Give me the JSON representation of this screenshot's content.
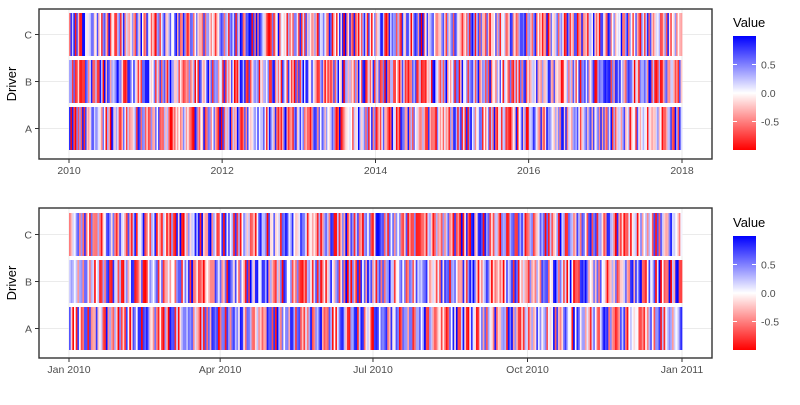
{
  "chart_data": [
    {
      "type": "heatmap",
      "title": "",
      "ylabel": "Driver",
      "xlabel": "",
      "categories": [
        "A",
        "B",
        "C"
      ],
      "x_range": [
        "2010-01-01",
        "2018-01-01"
      ],
      "x_ticks": [
        {
          "value": "2010-01-01",
          "label": "2010"
        },
        {
          "value": "2012-01-01",
          "label": "2012"
        },
        {
          "value": "2014-01-01",
          "label": "2014"
        },
        {
          "value": "2016-01-01",
          "label": "2016"
        },
        {
          "value": "2018-01-01",
          "label": "2018"
        }
      ],
      "stripe_count": 420,
      "value_range": [
        -1,
        1
      ],
      "seed": 7,
      "legend": {
        "title": "Value",
        "ticks": [
          0.5,
          0.0,
          -0.5
        ],
        "tick_labels": [
          "0.5",
          "0.0",
          "-0.5"
        ],
        "low_color": "#ff0000",
        "mid_color": "#ffffff",
        "high_color": "#0000ff"
      }
    },
    {
      "type": "heatmap",
      "title": "",
      "ylabel": "Driver",
      "xlabel": "",
      "categories": [
        "A",
        "B",
        "C"
      ],
      "x_range": [
        "2010-01-01",
        "2011-01-01"
      ],
      "x_ticks": [
        {
          "value": "2010-01-01",
          "label": "Jan 2010"
        },
        {
          "value": "2010-04-01",
          "label": "Apr 2010"
        },
        {
          "value": "2010-07-01",
          "label": "Jul 2010"
        },
        {
          "value": "2010-10-01",
          "label": "Oct 2010"
        },
        {
          "value": "2011-01-01",
          "label": "Jan 2011"
        }
      ],
      "stripe_count": 366,
      "value_range": [
        -1,
        1
      ],
      "seed": 23,
      "legend": {
        "title": "Value",
        "ticks": [
          0.5,
          0.0,
          -0.5
        ],
        "tick_labels": [
          "0.5",
          "0.0",
          "-0.5"
        ],
        "low_color": "#ff0000",
        "mid_color": "#ffffff",
        "high_color": "#0000ff"
      }
    }
  ]
}
